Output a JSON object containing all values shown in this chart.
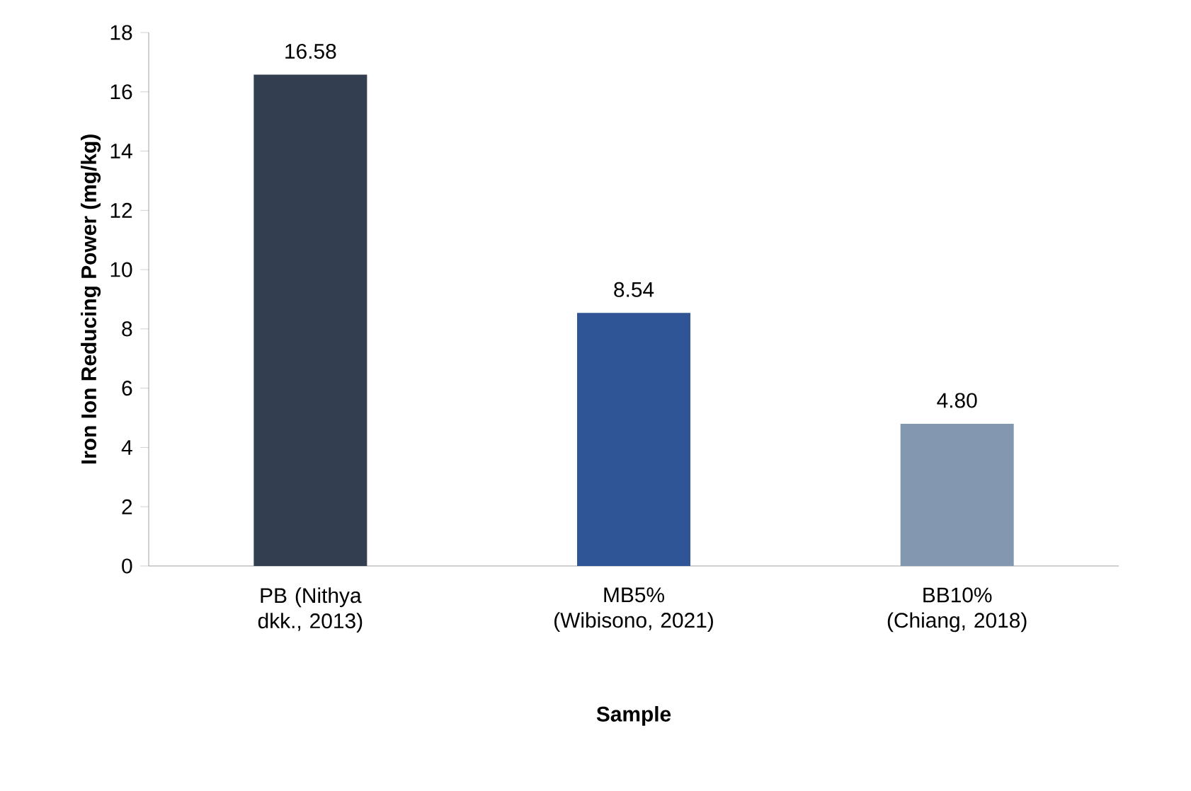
{
  "chart_data": {
    "type": "bar",
    "xlabel": "Sample",
    "ylabel": "Iron Ion Reducing Power (mg/kg)",
    "categories": [
      "PB (Nithya dkk., 2013)",
      "MB5% (Wibisono, 2021)",
      "BB10% (Chiang, 2018)"
    ],
    "values": [
      16.58,
      8.54,
      4.8
    ],
    "value_labels": [
      "16.58",
      "8.54",
      "4.80"
    ],
    "colors": [
      "#333f50",
      "#2f5597",
      "#8497b0"
    ],
    "ylim": [
      0,
      18
    ],
    "yticks": [
      0,
      2,
      4,
      6,
      8,
      10,
      12,
      14,
      16,
      18
    ]
  }
}
